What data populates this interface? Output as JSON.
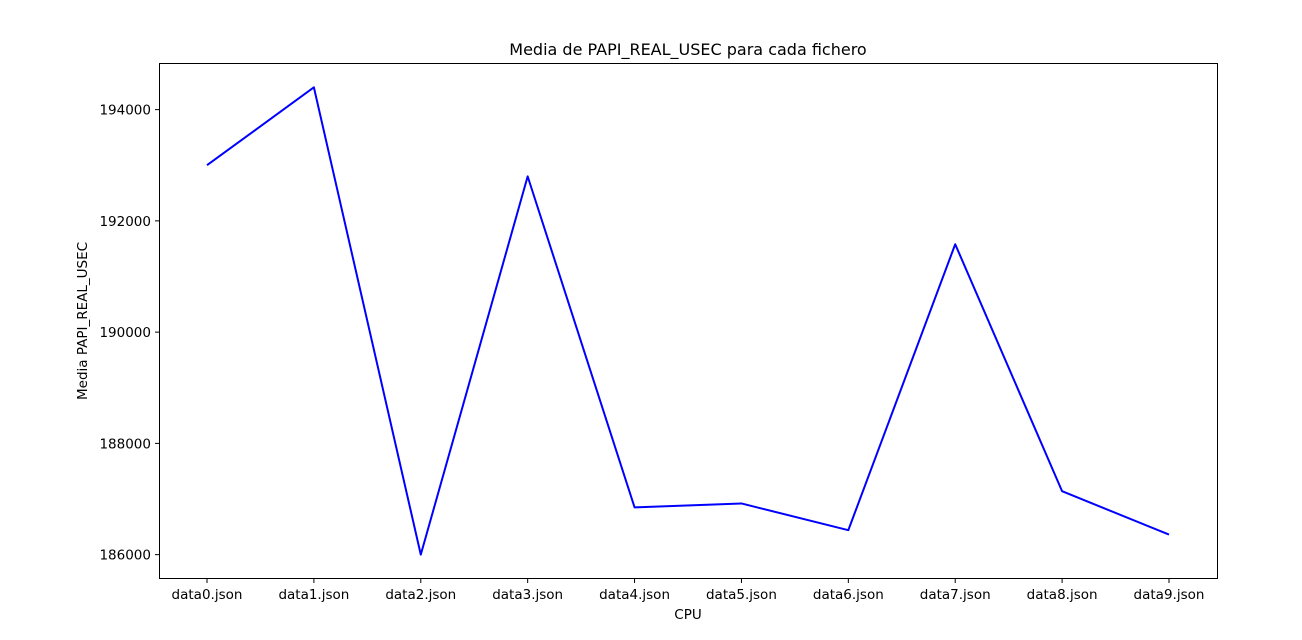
{
  "chart_data": {
    "type": "line",
    "title": "Media de PAPI_REAL_USEC para cada fichero",
    "xlabel": "CPU",
    "ylabel": "Media PAPI_REAL_USEC",
    "categories": [
      "data0.json",
      "data1.json",
      "data2.json",
      "data3.json",
      "data4.json",
      "data5.json",
      "data6.json",
      "data7.json",
      "data8.json",
      "data9.json"
    ],
    "series": [
      {
        "color": "#0000ff",
        "values": [
          193000,
          194400,
          186000,
          192800,
          186850,
          186920,
          186440,
          191580,
          187140,
          186360
        ]
      }
    ],
    "yticks": [
      186000,
      188000,
      190000,
      192000,
      194000
    ],
    "ytick_labels": [
      "186000",
      "188000",
      "190000",
      "192000",
      "194000"
    ],
    "ylim": [
      185580,
      194820
    ],
    "grid": false,
    "legend": "none"
  }
}
